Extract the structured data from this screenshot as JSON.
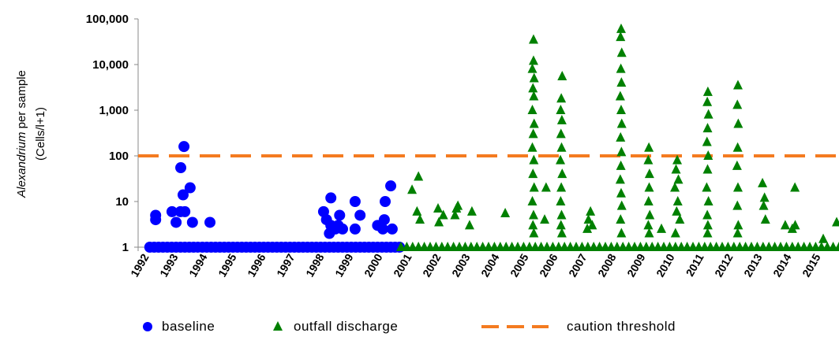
{
  "chart_data": {
    "type": "scatter",
    "y_label_italic": "Alexandrium",
    "y_label_rest": "per sample",
    "y_label_line2": "(Cells/l+1)",
    "log_y": true,
    "xlim": [
      1992,
      2016
    ],
    "xticks": [
      1992,
      1993,
      1994,
      1995,
      1996,
      1997,
      1998,
      1999,
      2000,
      2001,
      2002,
      2003,
      2004,
      2005,
      2006,
      2007,
      2008,
      2009,
      2010,
      2011,
      2012,
      2013,
      2014,
      2015
    ],
    "ylim": [
      1,
      100000
    ],
    "yticks": [
      1,
      10,
      100,
      {
        "value": 1000,
        "label": "1,000"
      },
      {
        "value": 10000,
        "label": "10,000"
      },
      {
        "value": 100000,
        "label": "100,000"
      }
    ],
    "threshold": {
      "name": "caution threshold",
      "value": 100,
      "color": "#f47b20"
    },
    "series": [
      {
        "name": "baseline",
        "color": "#0000ff",
        "marker": "circle",
        "x": [
          1992.4,
          1992.55,
          1992.7,
          1992.85,
          1993.0,
          1993.15,
          1993.3,
          1993.45,
          1993.6,
          1993.75,
          1993.9,
          1994.05,
          1994.2,
          1994.35,
          1994.5,
          1994.65,
          1994.8,
          1994.95,
          1995.1,
          1995.25,
          1995.4,
          1995.55,
          1995.7,
          1995.85,
          1996.0,
          1996.15,
          1996.3,
          1996.45,
          1996.6,
          1996.75,
          1996.9,
          1997.05,
          1997.2,
          1997.35,
          1997.5,
          1997.65,
          1997.8,
          1997.95,
          1998.1,
          1998.25,
          1998.4,
          1998.55,
          1998.7,
          1998.85,
          1999.0,
          1999.15,
          1999.3,
          1999.45,
          1999.6,
          1999.75,
          1999.9,
          2000.05,
          2000.2,
          2000.35,
          2000.5,
          2000.65,
          2000.8,
          2000.95,
          1992.6,
          1992.6,
          1993.16,
          1993.3,
          1993.45,
          1993.57,
          1993.46,
          1993.54,
          1993.78,
          1993.6,
          1993.86,
          1994.46,
          1998.35,
          1998.6,
          1998.45,
          1998.6,
          1998.75,
          1998.55,
          1998.9,
          1998.85,
          1999.0,
          1999.43,
          1999.6,
          1999.43,
          2000.2,
          2000.43,
          2000.46,
          2000.65,
          2000.7,
          2000.38
        ],
        "values": [
          1,
          1,
          1,
          1,
          1,
          1,
          1,
          1,
          1,
          1,
          1,
          1,
          1,
          1,
          1,
          1,
          1,
          1,
          1,
          1,
          1,
          1,
          1,
          1,
          1,
          1,
          1,
          1,
          1,
          1,
          1,
          1,
          1,
          1,
          1,
          1,
          1,
          1,
          1,
          1,
          1,
          1,
          1,
          1,
          1,
          1,
          1,
          1,
          1,
          1,
          1,
          1,
          1,
          1,
          1,
          1,
          1,
          1,
          5,
          4,
          6,
          3.5,
          6,
          160,
          55,
          14,
          20,
          6,
          3.5,
          3.5,
          6,
          12,
          4,
          3,
          2.5,
          2,
          5,
          3,
          2.5,
          10,
          5,
          2.5,
          3,
          4,
          10,
          22,
          2.5,
          2.5
        ]
      },
      {
        "name": "outfall discharge",
        "color": "#008000",
        "marker": "triangle",
        "x": [
          2001.0,
          2001.2,
          2001.4,
          2001.6,
          2001.8,
          2002.0,
          2002.2,
          2002.4,
          2002.6,
          2002.8,
          2003.0,
          2003.2,
          2003.4,
          2003.6,
          2003.8,
          2004.0,
          2004.2,
          2004.4,
          2004.6,
          2004.8,
          2005.0,
          2005.2,
          2005.4,
          2005.6,
          2005.8,
          2006.0,
          2006.2,
          2006.4,
          2006.6,
          2006.8,
          2007.0,
          2007.2,
          2007.4,
          2007.6,
          2007.8,
          2008.0,
          2008.2,
          2008.4,
          2008.6,
          2008.8,
          2009.0,
          2009.2,
          2009.4,
          2009.6,
          2009.8,
          2010.0,
          2010.2,
          2010.4,
          2010.6,
          2010.8,
          2011.0,
          2011.2,
          2011.4,
          2011.6,
          2011.8,
          2012.0,
          2012.2,
          2012.4,
          2012.6,
          2012.8,
          2013.0,
          2013.2,
          2013.4,
          2013.6,
          2013.8,
          2014.0,
          2014.2,
          2014.4,
          2014.6,
          2014.8,
          2015.0,
          2015.2,
          2015.4,
          2015.6,
          2015.8,
          2016.0,
          2001.38,
          2001.6,
          2001.55,
          2001.65,
          2002.27,
          2002.3,
          2002.45,
          2002.9,
          2002.95,
          2002.85,
          2003.43,
          2003.35,
          2004.57,
          2005.54,
          2005.54,
          2005.5,
          2005.56,
          2005.52,
          2005.55,
          2005.5,
          2005.56,
          2005.53,
          2005.5,
          2005.55,
          2005.52,
          2005.56,
          2005.5,
          2005.54,
          2005.52,
          2005.55,
          2005.97,
          2005.92,
          2006.52,
          2006.49,
          2006.47,
          2006.51,
          2006.48,
          2006.5,
          2006.46,
          2006.52,
          2006.49,
          2006.47,
          2006.5,
          2006.48,
          2006.51,
          2007.49,
          2007.42,
          2007.55,
          2007.38,
          2008.54,
          2008.52,
          2008.56,
          2008.53,
          2008.55,
          2008.51,
          2008.54,
          2008.56,
          2008.52,
          2008.55,
          2008.53,
          2008.51,
          2008.54,
          2008.56,
          2008.52,
          2008.55,
          2009.49,
          2009.47,
          2009.51,
          2009.5,
          2009.48,
          2009.52,
          2009.47,
          2009.5,
          2009.92,
          2010.46,
          2010.42,
          2010.5,
          2010.38,
          2010.48,
          2010.44,
          2010.55,
          2010.4,
          2011.51,
          2011.49,
          2011.53,
          2011.5,
          2011.48,
          2011.52,
          2011.5,
          2011.47,
          2011.53,
          2011.49,
          2011.51,
          2011.5,
          2012.54,
          2012.52,
          2012.55,
          2012.53,
          2012.51,
          2012.54,
          2012.52,
          2012.55,
          2012.53,
          2013.38,
          2013.45,
          2013.42,
          2013.48,
          2014.16,
          2014.49,
          2014.5,
          2014.4,
          2015.46,
          2015.92
        ],
        "values": [
          1,
          1,
          1,
          1,
          1,
          1,
          1,
          1,
          1,
          1,
          1,
          1,
          1,
          1,
          1,
          1,
          1,
          1,
          1,
          1,
          1,
          1,
          1,
          1,
          1,
          1,
          1,
          1,
          1,
          1,
          1,
          1,
          1,
          1,
          1,
          1,
          1,
          1,
          1,
          1,
          1,
          1,
          1,
          1,
          1,
          1,
          1,
          1,
          1,
          1,
          1,
          1,
          1,
          1,
          1,
          1,
          1,
          1,
          1,
          1,
          1,
          1,
          1,
          1,
          1,
          1,
          1,
          1,
          1,
          1,
          1,
          1,
          1,
          1,
          1,
          1,
          18,
          35,
          6,
          4,
          7,
          3.5,
          5,
          7,
          8,
          5,
          6,
          3,
          5.5,
          35000,
          12000,
          8000,
          5000,
          3000,
          2000,
          1000,
          500,
          300,
          150,
          80,
          40,
          20,
          10,
          5,
          3,
          2,
          20,
          4,
          5500,
          1800,
          1000,
          600,
          300,
          150,
          80,
          40,
          20,
          10,
          5,
          3,
          2,
          6,
          4,
          3,
          2.5,
          60000,
          40000,
          18000,
          8000,
          4000,
          2000,
          1000,
          500,
          250,
          120,
          60,
          30,
          15,
          8,
          4,
          2,
          150,
          80,
          40,
          20,
          10,
          5,
          3,
          2,
          2.5,
          80,
          50,
          30,
          20,
          10,
          6,
          4,
          2,
          2500,
          1500,
          800,
          400,
          200,
          100,
          50,
          20,
          10,
          5,
          3,
          2,
          3500,
          1300,
          500,
          150,
          60,
          20,
          8,
          3,
          2,
          25,
          12,
          8,
          4,
          3,
          20,
          3,
          2.5,
          1.5,
          3.5
        ]
      }
    ]
  }
}
